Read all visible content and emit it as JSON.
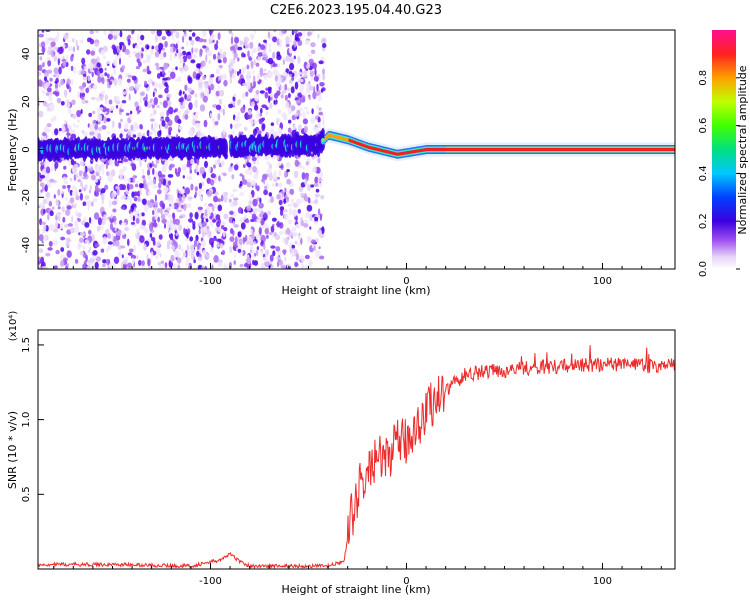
{
  "title": "C2E6.2023.195.04.40.G23",
  "chart_data": [
    {
      "type": "heatmap",
      "xlabel": "Height of straight line (km)",
      "ylabel": "Frequency (Hz)",
      "xlim": [
        -188,
        137
      ],
      "ylim": [
        -50,
        50
      ],
      "x_ticks": [
        -100,
        0,
        100
      ],
      "y_ticks": [
        -40,
        -20,
        0,
        20,
        40
      ],
      "colorbar": {
        "label": "Normalized spectral amplitude",
        "range": [
          0.0,
          1.0
        ],
        "ticks": [
          0.0,
          0.2,
          0.4,
          0.6,
          0.8
        ]
      },
      "ridge": [
        {
          "x": -188,
          "y": 0
        },
        {
          "x": -95,
          "y": 1
        },
        {
          "x": -45,
          "y": 2
        },
        {
          "x": -40,
          "y": 6
        },
        {
          "x": -30,
          "y": 4
        },
        {
          "x": -20,
          "y": 1
        },
        {
          "x": -5,
          "y": -2
        },
        {
          "x": 10,
          "y": 0
        },
        {
          "x": 137,
          "y": 0
        }
      ],
      "noise_regions": [
        [
          -188,
          -92
        ],
        [
          -90,
          -42
        ]
      ]
    },
    {
      "type": "line",
      "xlabel": "Height of straight line (km)",
      "ylabel": "SNR (10 * v/v)",
      "y_multiplier": "(x10⁴)",
      "xlim": [
        -188,
        137
      ],
      "ylim": [
        0,
        1.6
      ],
      "x_ticks": [
        -100,
        0,
        100
      ],
      "y_ticks": [
        0.5,
        1.0,
        1.5
      ],
      "series": [
        {
          "color": "#ee2b2b",
          "x": [
            -188,
            -150,
            -110,
            -95,
            -90,
            -85,
            -80,
            -60,
            -40,
            -32,
            -28,
            -24,
            -20,
            -16,
            -12,
            -8,
            -4,
            0,
            4,
            8,
            12,
            16,
            20,
            25,
            30,
            40,
            50,
            60,
            70,
            80,
            90,
            100,
            110,
            120,
            137
          ],
          "y": [
            0.03,
            0.03,
            0.02,
            0.06,
            0.1,
            0.05,
            0.02,
            0.02,
            0.02,
            0.05,
            0.35,
            0.55,
            0.62,
            0.75,
            0.72,
            0.78,
            0.85,
            0.85,
            0.95,
            1.0,
            1.1,
            1.15,
            1.2,
            1.25,
            1.3,
            1.32,
            1.33,
            1.34,
            1.35,
            1.36,
            1.36,
            1.37,
            1.37,
            1.36,
            1.36
          ]
        }
      ]
    }
  ]
}
